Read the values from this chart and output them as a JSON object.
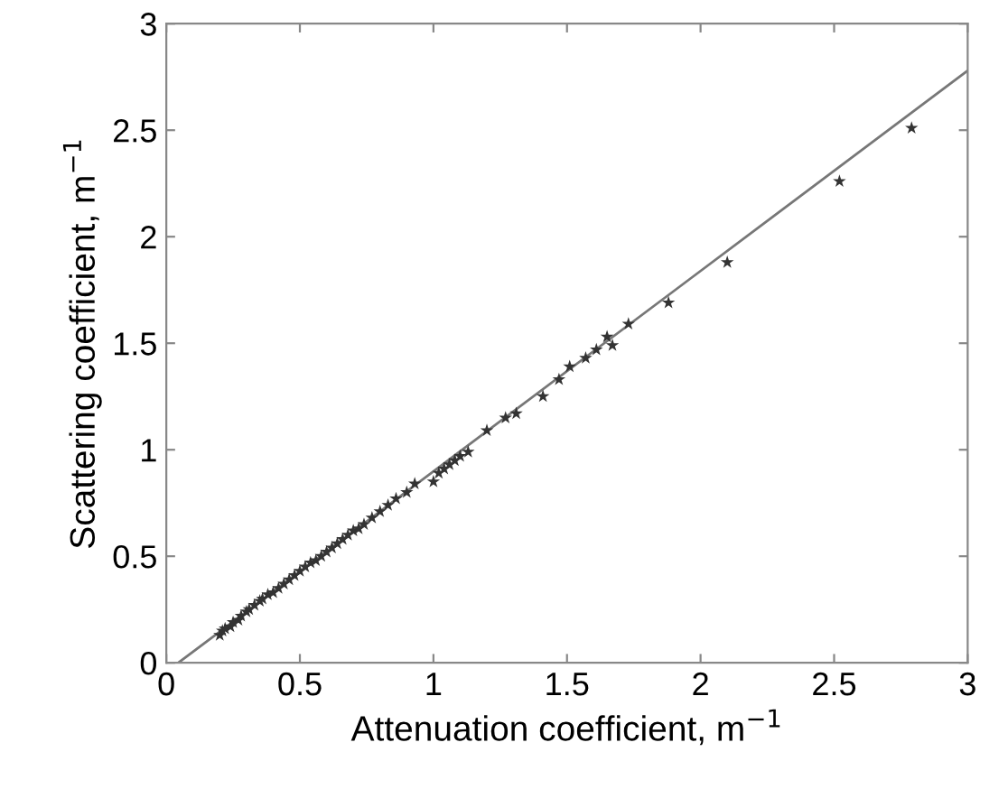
{
  "chart_data": {
    "type": "scatter",
    "xlabel": "Attenuation coefficient, m$^{−1}$",
    "ylabel": "Scattering coefficient, m$^{−1}$",
    "xlim": [
      0,
      3
    ],
    "ylim": [
      0,
      3
    ],
    "xticks": [
      0,
      0.5,
      1,
      1.5,
      2,
      2.5,
      3
    ],
    "yticks": [
      0,
      0.5,
      1,
      1.5,
      2,
      2.5,
      3
    ],
    "grid": false,
    "legend": false,
    "series": [
      {
        "marker": "star",
        "color": "#333333",
        "x": [
          0.2,
          0.21,
          0.22,
          0.24,
          0.25,
          0.27,
          0.28,
          0.3,
          0.31,
          0.33,
          0.35,
          0.36,
          0.38,
          0.4,
          0.42,
          0.44,
          0.46,
          0.48,
          0.5,
          0.52,
          0.54,
          0.56,
          0.58,
          0.6,
          0.62,
          0.64,
          0.66,
          0.68,
          0.7,
          0.72,
          0.74,
          0.77,
          0.8,
          0.83,
          0.86,
          0.9,
          0.93,
          1.0,
          1.02,
          1.04,
          1.06,
          1.08,
          1.1,
          1.13,
          1.2,
          1.27,
          1.31,
          1.41,
          1.47,
          1.51,
          1.57,
          1.61,
          1.65,
          1.67,
          1.73,
          1.88,
          2.1,
          2.52,
          2.79
        ],
        "values": [
          0.13,
          0.15,
          0.16,
          0.17,
          0.19,
          0.2,
          0.22,
          0.24,
          0.25,
          0.27,
          0.29,
          0.3,
          0.32,
          0.33,
          0.35,
          0.37,
          0.39,
          0.41,
          0.43,
          0.45,
          0.47,
          0.48,
          0.5,
          0.52,
          0.54,
          0.56,
          0.58,
          0.6,
          0.62,
          0.63,
          0.65,
          0.68,
          0.71,
          0.74,
          0.77,
          0.8,
          0.84,
          0.85,
          0.89,
          0.91,
          0.93,
          0.95,
          0.97,
          0.99,
          1.09,
          1.15,
          1.17,
          1.25,
          1.33,
          1.39,
          1.43,
          1.47,
          1.53,
          1.49,
          1.59,
          1.69,
          1.88,
          2.26,
          2.51
        ]
      },
      {
        "type": "line",
        "marker": "none",
        "line_style": "solid",
        "color": "#777777",
        "x": [
          0.045,
          3
        ],
        "values": [
          0,
          2.78
        ]
      }
    ]
  }
}
